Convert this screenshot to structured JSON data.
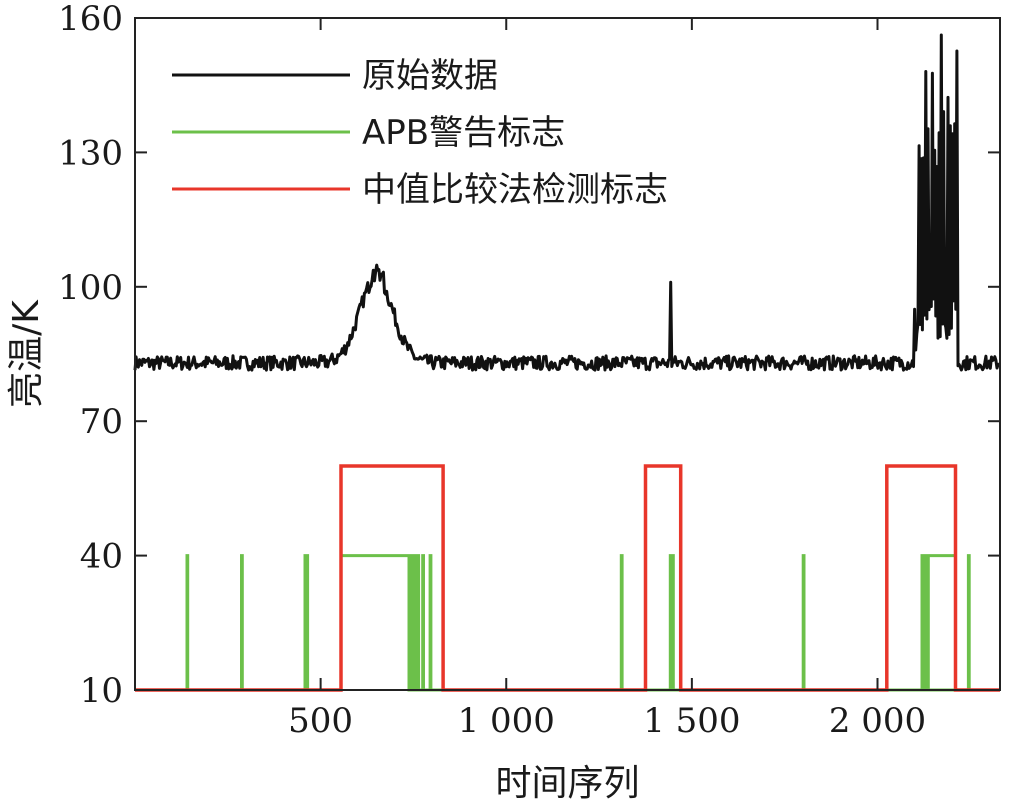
{
  "chart_data": {
    "type": "line",
    "xlabel": "时间序列",
    "ylabel": "亮温/K",
    "xlim": [
      0,
      2330
    ],
    "ylim": [
      10,
      160
    ],
    "x_ticks": [
      500,
      1000,
      1500,
      2000
    ],
    "x_tick_labels": [
      "500",
      "1 000",
      "1 500",
      "2 000"
    ],
    "y_ticks": [
      10,
      40,
      70,
      100,
      130,
      160
    ],
    "y_tick_labels": [
      "10",
      "40",
      "70",
      "100",
      "130",
      "160"
    ],
    "legend_position": "top-left",
    "series": [
      {
        "name": "原始数据",
        "color": "#111111",
        "kind": "noisy-signal",
        "baseline": 83,
        "noise_amplitude": 1.6,
        "features": [
          {
            "type": "bump",
            "center": 650,
            "peak": 102,
            "width": 45,
            "spike_max": 106
          },
          {
            "type": "spike",
            "x": 1443,
            "peak": 101
          },
          {
            "type": "burst",
            "start": 2100,
            "end": 2215,
            "min": 83,
            "max": 157,
            "peaks": [
              99,
              138,
              148,
              157,
              140,
              143,
              136
            ]
          }
        ]
      },
      {
        "name": "APB警告标志",
        "color": "#6cc04a",
        "kind": "flags",
        "low": 10,
        "high": 40,
        "spikes": [
          140,
          287,
          458,
          463,
          742,
          752,
          762,
          775,
          795,
          1310,
          1442,
          1448,
          1800,
          2120,
          2125,
          2130,
          2135,
          2245
        ],
        "plateaus": [
          [
            555,
            738
          ],
          [
            2135,
            2210
          ]
        ]
      },
      {
        "name": "中值比较法检测标志",
        "color": "#e8362a",
        "kind": "flags",
        "low": 10,
        "high": 60,
        "plateaus": [
          [
            555,
            830
          ],
          [
            1375,
            1470
          ],
          [
            2025,
            2210
          ]
        ]
      }
    ]
  }
}
